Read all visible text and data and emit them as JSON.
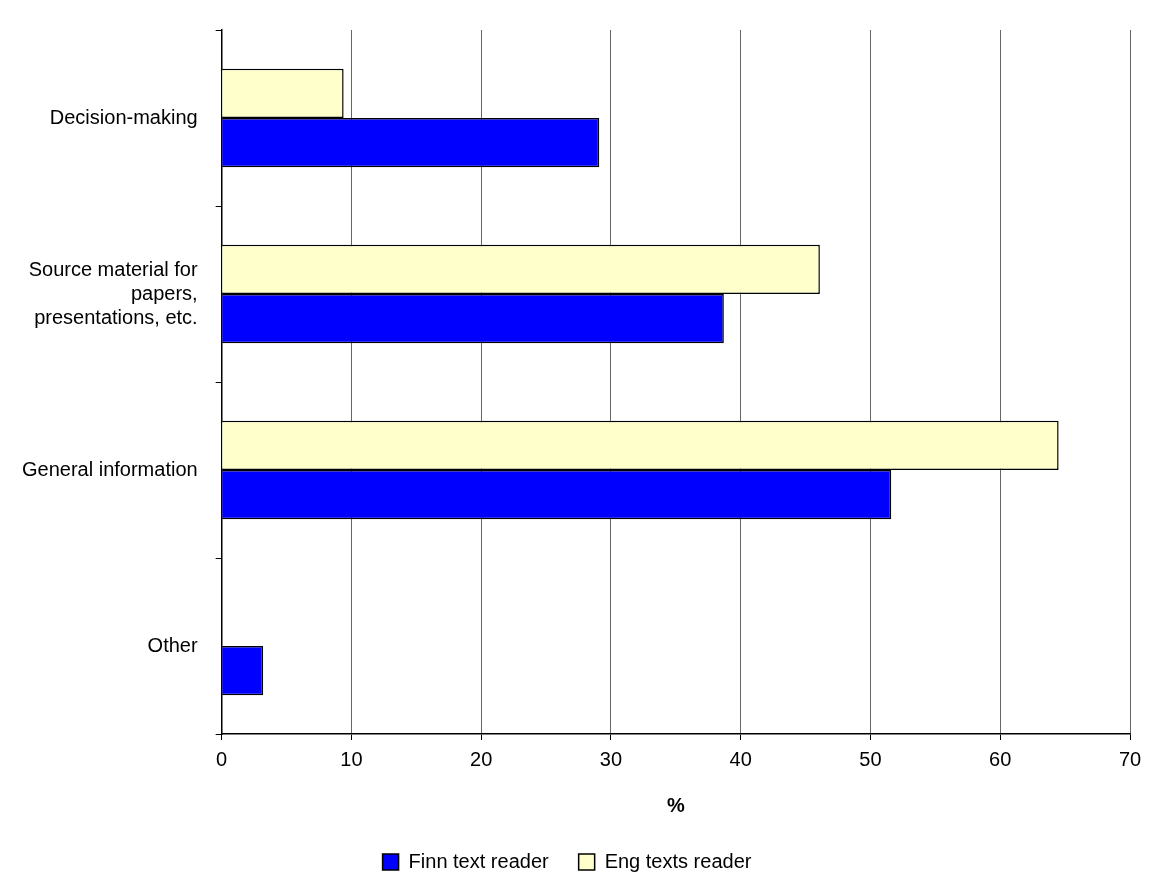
{
  "chart_data": {
    "type": "bar",
    "orientation": "horizontal",
    "xlabel": "%",
    "categories": [
      "Decision-making",
      "Source material for papers, presentations, etc.",
      "General information",
      "Other"
    ],
    "series": [
      {
        "name": "Finn text reader",
        "color": "#0000ff",
        "values": [
          29.1,
          38.7,
          51.6,
          3.2
        ]
      },
      {
        "name": "Eng texts reader",
        "color": "#ffffcc",
        "values": [
          9.4,
          46.1,
          64.5,
          null
        ]
      }
    ],
    "xlim": [
      0,
      70
    ],
    "xticks": [
      0,
      10,
      20,
      30,
      40,
      50,
      60,
      70
    ],
    "grid": "x",
    "legend": "bottom"
  }
}
